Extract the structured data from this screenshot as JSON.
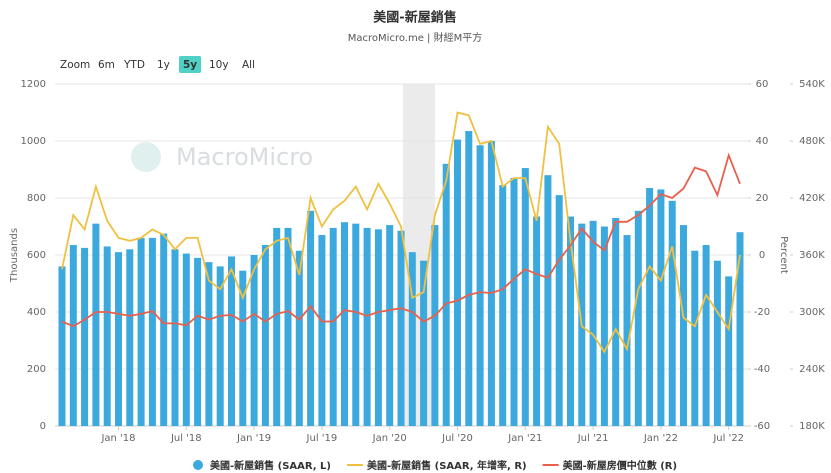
{
  "chart_data": {
    "type": "bar",
    "title": "美國-新屋銷售",
    "subtitle": "MacroMicro.me | 財經M平方",
    "watermark": "MacroMicro",
    "zoom_buttons": [
      "Zoom",
      "6m",
      "YTD",
      "1y",
      "5y",
      "10y",
      "All"
    ],
    "active_zoom": "5y",
    "y_label": "Thousands",
    "y2_label": "Percent",
    "categories": [
      null,
      null,
      null,
      null,
      null,
      "Jan '18",
      null,
      null,
      null,
      null,
      null,
      "Jul '18",
      null,
      null,
      null,
      null,
      null,
      "Jan '19",
      null,
      null,
      null,
      null,
      null,
      "Jul '19",
      null,
      null,
      null,
      null,
      null,
      "Jan '20",
      null,
      null,
      null,
      null,
      null,
      "Jul '20",
      null,
      null,
      null,
      null,
      null,
      "Jan '21",
      null,
      null,
      null,
      null,
      null,
      "Jul '21",
      null,
      null,
      null,
      null,
      null,
      "Jan '22",
      null,
      null,
      null,
      null,
      null,
      "Jul '22",
      null
    ],
    "ylim": [
      0,
      1200
    ],
    "yticks": [
      0,
      200,
      400,
      600,
      800,
      1000,
      1200
    ],
    "y2lim": [
      -60,
      60
    ],
    "y2ticks": [
      -60,
      -40,
      -20,
      0,
      20,
      40,
      60
    ],
    "y3lim": [
      180,
      540
    ],
    "y3ticks": [
      {
        "value": 180,
        "label": "180K"
      },
      {
        "value": 240,
        "label": "240K"
      },
      {
        "value": 300,
        "label": "300K"
      },
      {
        "value": 360,
        "label": "360K"
      },
      {
        "value": 420,
        "label": "420K"
      },
      {
        "value": 480,
        "label": "480K"
      },
      {
        "value": 540,
        "label": "540K"
      }
    ],
    "series": [
      {
        "name": "美國-新屋銷售 (SAAR, L)",
        "type": "bar",
        "axis": "y",
        "color": "#3ba9dd",
        "values": [
          560,
          635,
          625,
          710,
          630,
          610,
          620,
          660,
          660,
          675,
          620,
          605,
          590,
          575,
          560,
          595,
          545,
          600,
          635,
          695,
          695,
          615,
          755,
          670,
          695,
          715,
          710,
          695,
          690,
          705,
          685,
          610,
          580,
          705,
          920,
          1005,
          1035,
          985,
          1000,
          845,
          870,
          905,
          735,
          880,
          810,
          735,
          710,
          720,
          700,
          730,
          670,
          755,
          835,
          830,
          790,
          705,
          615,
          635,
          580,
          525,
          680
        ]
      },
      {
        "name": "美國-新屋銷售 (SAAR, 年增率, R)",
        "type": "line",
        "axis": "y2",
        "color": "#f0c040",
        "values": [
          -5,
          14,
          9,
          24,
          12,
          6,
          5,
          6,
          9,
          7,
          2,
          6,
          6,
          -9,
          -12,
          -5,
          -15,
          -5,
          2,
          5,
          6,
          -7,
          20,
          10,
          16,
          19,
          24,
          16,
          25,
          18,
          10,
          -15,
          -13,
          14,
          26,
          50,
          49,
          39,
          40,
          24,
          27,
          27,
          12,
          45,
          39,
          5,
          -25,
          -28,
          -34,
          -26,
          -33,
          -12,
          -4,
          -9,
          3,
          -22,
          -25,
          -14,
          -20,
          -26,
          0
        ]
      },
      {
        "name": "美國-新屋房價中位數 (R)",
        "type": "line",
        "axis": "y3",
        "color": "#e8604c",
        "values": [
          290,
          285,
          292,
          300,
          300,
          298,
          296,
          298,
          301,
          288,
          288,
          286,
          296,
          292,
          296,
          297,
          290,
          298,
          290,
          298,
          301,
          292,
          306,
          290,
          290,
          302,
          300,
          296,
          300,
          302,
          304,
          300,
          290,
          296,
          309,
          312,
          318,
          321,
          320,
          324,
          335,
          345,
          340,
          336,
          355,
          370,
          388,
          374,
          365,
          395,
          395,
          402,
          412,
          424,
          420,
          430,
          452,
          448,
          423,
          465,
          435
        ]
      }
    ]
  }
}
